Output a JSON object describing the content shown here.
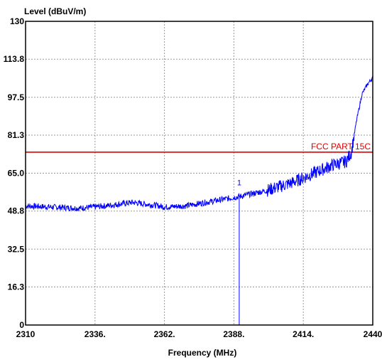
{
  "chart_data": {
    "type": "line",
    "ylabel": "Level (dBuV/m)",
    "xlabel": "Frequency (MHz)",
    "xlim": [
      2310,
      2440
    ],
    "ylim": [
      0,
      130
    ],
    "x_ticks": [
      "2310",
      "2336.",
      "2362.",
      "2388.",
      "2414.",
      "2440"
    ],
    "x_tick_values": [
      2310,
      2336,
      2362,
      2388,
      2414,
      2440
    ],
    "y_ticks": [
      "130",
      "113.8",
      "97.5",
      "81.3",
      "65.0",
      "48.8",
      "32.5",
      "16.3",
      "0"
    ],
    "y_tick_values": [
      130,
      113.8,
      97.5,
      81.3,
      65.0,
      48.8,
      32.5,
      16.3,
      0
    ],
    "grid": true,
    "limit_line": {
      "label": "FCC PART 15C",
      "value": 74,
      "color": "#e00000"
    },
    "marker": {
      "label": "1",
      "x": 2390
    },
    "series": [
      {
        "color": "#0000ff",
        "x": [
          2310,
          2320,
          2330,
          2340,
          2350,
          2360,
          2362,
          2370,
          2380,
          2390,
          2400,
          2410,
          2418,
          2425,
          2430,
          2432,
          2434,
          2436,
          2438,
          2440
        ],
        "y": [
          51,
          50.5,
          50,
          51,
          52.5,
          51,
          50.5,
          51,
          53,
          55,
          57.5,
          61,
          65,
          68.5,
          70,
          74,
          88,
          99,
          103,
          106
        ]
      }
    ]
  }
}
